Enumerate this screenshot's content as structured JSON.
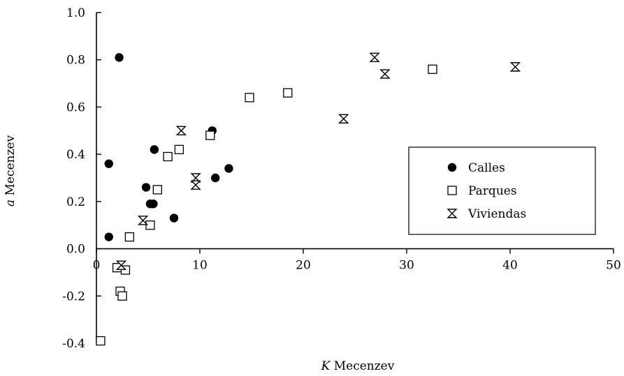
{
  "chart_data": {
    "type": "scatter",
    "xlabel": {
      "italic": "K",
      "rest": " Mecenzev"
    },
    "ylabel": {
      "italic": "a",
      "rest": " Mecenzev"
    },
    "xlim": [
      0,
      50
    ],
    "ylim": [
      -0.4,
      1.0
    ],
    "xticks": [
      0,
      10,
      20,
      30,
      40,
      50
    ],
    "xtick_labels": [
      "0",
      "10",
      "20",
      "30",
      "40",
      "50"
    ],
    "yticks": [
      -0.4,
      -0.2,
      0.0,
      0.2,
      0.4,
      0.6,
      0.8,
      1.0
    ],
    "ytick_labels": [
      "-0.4",
      "-0.2",
      "0.0",
      "0.2",
      "0.4",
      "0.6",
      "0.8",
      "1.0"
    ],
    "grid": false,
    "legend": {
      "position": "right"
    },
    "series": [
      {
        "name": "Calles",
        "marker": "filled-circle",
        "color": "#000000",
        "points": [
          [
            2.2,
            0.81
          ],
          [
            1.2,
            0.36
          ],
          [
            1.2,
            0.05
          ],
          [
            4.8,
            0.26
          ],
          [
            5.6,
            0.42
          ],
          [
            5.2,
            0.19
          ],
          [
            5.5,
            0.19
          ],
          [
            7.5,
            0.13
          ],
          [
            11.2,
            0.5
          ],
          [
            11.5,
            0.3
          ],
          [
            12.8,
            0.34
          ]
        ]
      },
      {
        "name": "Parques",
        "marker": "open-square",
        "color": "#000000",
        "points": [
          [
            0.4,
            -0.39
          ],
          [
            2.0,
            -0.08
          ],
          [
            2.3,
            -0.18
          ],
          [
            2.5,
            -0.2
          ],
          [
            2.8,
            -0.09
          ],
          [
            3.2,
            0.05
          ],
          [
            5.2,
            0.1
          ],
          [
            5.9,
            0.25
          ],
          [
            6.9,
            0.39
          ],
          [
            8.0,
            0.42
          ],
          [
            11.0,
            0.48
          ],
          [
            14.8,
            0.64
          ],
          [
            18.5,
            0.66
          ],
          [
            32.5,
            0.76
          ]
        ]
      },
      {
        "name": "Viviendas",
        "marker": "hourglass",
        "color": "#000000",
        "points": [
          [
            2.4,
            -0.07
          ],
          [
            4.5,
            0.12
          ],
          [
            8.2,
            0.5
          ],
          [
            9.6,
            0.3
          ],
          [
            9.6,
            0.27
          ],
          [
            23.9,
            0.55
          ],
          [
            26.9,
            0.81
          ],
          [
            27.9,
            0.74
          ],
          [
            40.5,
            0.77
          ]
        ]
      }
    ]
  }
}
